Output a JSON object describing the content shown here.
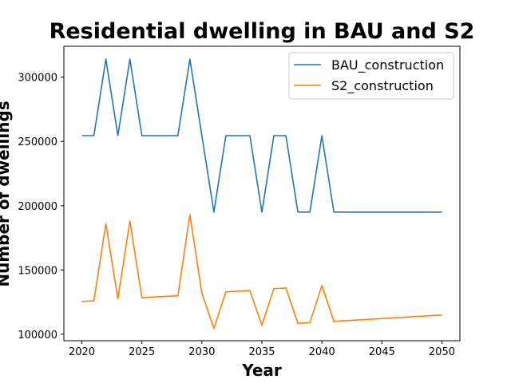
{
  "chart_data": {
    "type": "line",
    "title": "Residential dwelling in BAU and S2",
    "xlabel": "Year",
    "ylabel": "Number of dwellings",
    "xlim": [
      2018.5,
      2051.5
    ],
    "ylim": [
      95000,
      324000
    ],
    "xticks": [
      2020,
      2025,
      2030,
      2035,
      2040,
      2045,
      2050
    ],
    "yticks": [
      100000,
      150000,
      200000,
      250000,
      300000
    ],
    "grid": false,
    "legend": "top-right",
    "series": [
      {
        "name": "BAU_construction",
        "color": "#1f77b4",
        "x": [
          2020,
          2021,
          2022,
          2023,
          2024,
          2025,
          2026,
          2027,
          2028,
          2029,
          2030,
          2031,
          2032,
          2033,
          2034,
          2035,
          2036,
          2037,
          2038,
          2039,
          2040,
          2041,
          2050
        ],
        "values": [
          254500,
          254500,
          314000,
          254500,
          314000,
          254500,
          254500,
          254500,
          254500,
          314000,
          254500,
          195000,
          254500,
          254500,
          254500,
          195000,
          254500,
          254500,
          195000,
          195000,
          254500,
          195000,
          195000
        ]
      },
      {
        "name": "S2_construction",
        "color": "#ff7f0e",
        "x": [
          2020,
          2021,
          2022,
          2023,
          2024,
          2025,
          2026,
          2027,
          2028,
          2029,
          2030,
          2031,
          2032,
          2033,
          2034,
          2035,
          2036,
          2037,
          2038,
          2039,
          2040,
          2041,
          2050
        ],
        "values": [
          125500,
          126000,
          186000,
          127500,
          188000,
          128500,
          129000,
          129500,
          130000,
          193000,
          132000,
          104500,
          133000,
          133500,
          134000,
          107000,
          135500,
          136000,
          108500,
          109000,
          138000,
          110000,
          115000
        ]
      }
    ]
  }
}
